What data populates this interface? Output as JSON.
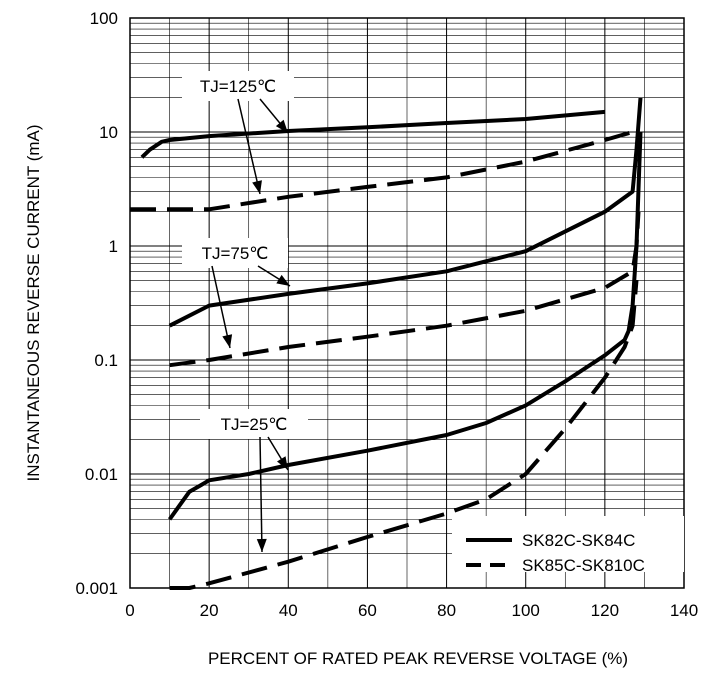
{
  "chart_data": {
    "type": "line",
    "title": "",
    "xlabel": "PERCENT OF RATED PEAK REVERSE VOLTAGE (%)",
    "ylabel": "INSTANTANEOUS REVERSE CURRENT (mA)",
    "x_scale": "linear",
    "y_scale": "log",
    "xlim": [
      0,
      140
    ],
    "ylim": [
      0.001,
      100
    ],
    "x_ticks": [
      "0",
      "20",
      "40",
      "60",
      "80",
      "100",
      "120",
      "140"
    ],
    "y_ticks": [
      "0.001",
      "0.01",
      "0.1",
      "1",
      "10",
      "100"
    ],
    "grid": true,
    "legend_position": "bottom-right",
    "legend": [
      {
        "label": "SK82C-SK84C",
        "style": "solid"
      },
      {
        "label": "SK85C-SK810C",
        "style": "dashed"
      }
    ],
    "annotations": [
      {
        "text": "TJ=125℃"
      },
      {
        "text": "TJ=75℃"
      },
      {
        "text": "TJ=25℃"
      }
    ],
    "series": [
      {
        "group": "SK82C-SK84C",
        "temperature": "TJ=125℃",
        "style": "solid",
        "x": [
          3,
          5,
          8,
          10,
          20,
          40,
          60,
          80,
          100,
          120
        ],
        "y": [
          6,
          7,
          8.2,
          8.5,
          9.2,
          10.2,
          11,
          12,
          13,
          15
        ]
      },
      {
        "group": "SK85C-SK810C",
        "temperature": "TJ=125℃",
        "style": "dashed",
        "x": [
          0,
          20,
          40,
          60,
          80,
          100,
          120,
          127
        ],
        "y": [
          2.1,
          2.1,
          2.7,
          3.3,
          4.0,
          5.5,
          8.5,
          10
        ]
      },
      {
        "group": "SK82C-SK84C",
        "temperature": "TJ=75℃",
        "style": "solid",
        "x": [
          10,
          20,
          40,
          60,
          80,
          100,
          120,
          127,
          128,
          129
        ],
        "y": [
          0.2,
          0.3,
          0.38,
          0.47,
          0.6,
          0.9,
          2.0,
          3.0,
          7.0,
          20
        ]
      },
      {
        "group": "SK85C-SK810C",
        "temperature": "TJ=75℃",
        "style": "dashed",
        "x": [
          10,
          20,
          40,
          60,
          80,
          100,
          120,
          127,
          128,
          128.5
        ],
        "y": [
          0.09,
          0.1,
          0.13,
          0.16,
          0.2,
          0.27,
          0.43,
          0.6,
          1.0,
          2.0
        ]
      },
      {
        "group": "SK82C-SK84C",
        "temperature": "TJ=25℃",
        "style": "solid",
        "x": [
          10,
          12,
          15,
          18,
          20,
          30,
          40,
          60,
          80,
          90,
          100,
          110,
          120,
          125,
          126,
          127,
          128,
          129
        ],
        "y": [
          0.004,
          0.005,
          0.007,
          0.008,
          0.0088,
          0.01,
          0.012,
          0.016,
          0.022,
          0.028,
          0.04,
          0.065,
          0.11,
          0.15,
          0.18,
          0.3,
          1.0,
          10
        ]
      },
      {
        "group": "SK85C-SK810C",
        "temperature": "TJ=25℃",
        "style": "dashed",
        "x": [
          10,
          15,
          20,
          40,
          60,
          80,
          90,
          100,
          110,
          120,
          125,
          127,
          128
        ],
        "y": [
          0.001,
          0.001,
          0.0011,
          0.0017,
          0.0028,
          0.0045,
          0.006,
          0.01,
          0.025,
          0.07,
          0.13,
          0.2,
          0.5
        ]
      }
    ]
  }
}
